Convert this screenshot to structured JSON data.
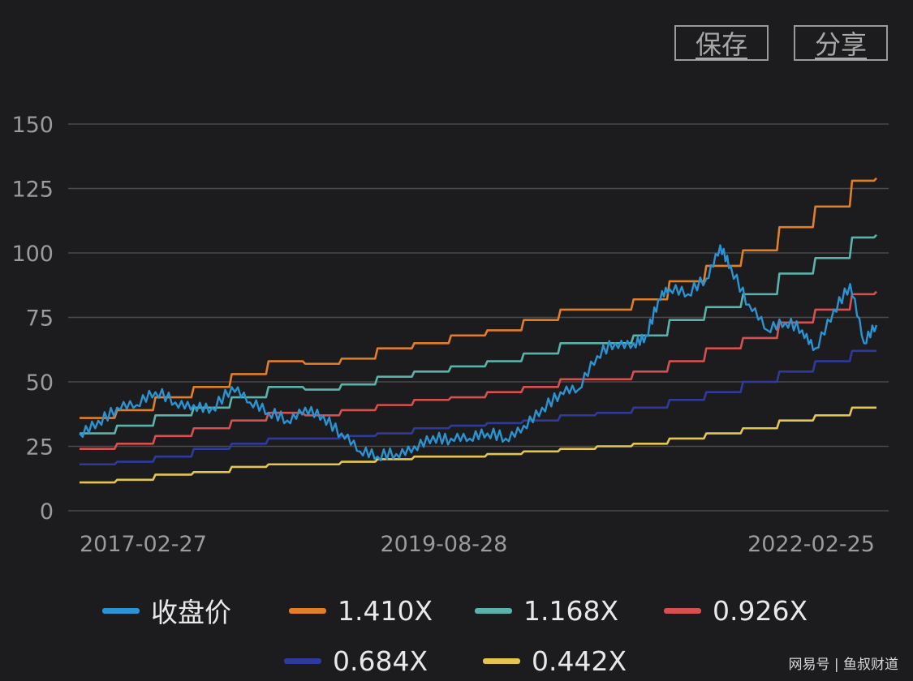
{
  "toolbar": {
    "save_label": "保存",
    "share_label": "分享"
  },
  "watermark": "网易号 | 鱼叔财道",
  "chart_data": {
    "type": "line",
    "title": "",
    "xlabel": "",
    "ylabel": "",
    "ylim": [
      0,
      150
    ],
    "yticks": [
      0,
      25,
      50,
      75,
      100,
      125,
      150
    ],
    "ytick_labels": [
      "0",
      "25",
      "50",
      "75",
      "100",
      "125",
      "150"
    ],
    "xticks": [
      "2017-02-27",
      "2019-08-28",
      "2022-02-25"
    ],
    "xlim": [
      "2017-02-27",
      "2022-08-15"
    ],
    "grid": true,
    "legend_position": "bottom",
    "series": [
      {
        "name": "收盘价",
        "color": "#2b93d1",
        "x": [
          "2017-02-27",
          "2017-04-15",
          "2017-06-01",
          "2017-07-20",
          "2017-09-05",
          "2017-10-25",
          "2017-12-10",
          "2018-01-25",
          "2018-03-15",
          "2018-04-30",
          "2018-06-15",
          "2018-08-01",
          "2018-09-15",
          "2018-10-30",
          "2018-12-15",
          "2019-01-30",
          "2019-03-15",
          "2019-05-01",
          "2019-06-15",
          "2019-08-01",
          "2019-09-15",
          "2019-11-01",
          "2019-12-15",
          "2020-01-30",
          "2020-03-15",
          "2020-04-30",
          "2020-06-15",
          "2020-07-30",
          "2020-09-15",
          "2020-10-30",
          "2020-12-15",
          "2021-01-15",
          "2021-02-15",
          "2021-03-15",
          "2021-04-30",
          "2021-06-15",
          "2021-07-20",
          "2021-08-15",
          "2021-09-30",
          "2021-11-15",
          "2021-12-30",
          "2022-02-10",
          "2022-03-15",
          "2022-04-30",
          "2022-06-10",
          "2022-07-15",
          "2022-08-15"
        ],
        "values": [
          30,
          35,
          40,
          41,
          46,
          42,
          41,
          40,
          48,
          42,
          38,
          35,
          40,
          37,
          30,
          23,
          21,
          22,
          25,
          29,
          28,
          28,
          30,
          28,
          33,
          40,
          46,
          47,
          60,
          65,
          65,
          68,
          82,
          86,
          84,
          90,
          103,
          95,
          80,
          70,
          73,
          70,
          63,
          78,
          88,
          65,
          72
        ]
      },
      {
        "name": "1.410X",
        "color": "#e07f26",
        "x": [
          "2017-02-27",
          "2017-06-01",
          "2017-09-05",
          "2017-12-10",
          "2018-03-15",
          "2018-06-15",
          "2018-09-15",
          "2018-12-15",
          "2019-03-15",
          "2019-06-15",
          "2019-09-15",
          "2019-12-15",
          "2020-03-15",
          "2020-06-15",
          "2020-09-15",
          "2020-12-15",
          "2021-03-15",
          "2021-06-15",
          "2021-09-15",
          "2021-12-15",
          "2022-03-15",
          "2022-06-15",
          "2022-08-15"
        ],
        "values": [
          36,
          39,
          44,
          48,
          53,
          58,
          57,
          59,
          63,
          65,
          68,
          70,
          74,
          78,
          78,
          82,
          89,
          95,
          101,
          110,
          118,
          128,
          129
        ]
      },
      {
        "name": "1.168X",
        "color": "#5ab3aa",
        "x": [
          "2017-02-27",
          "2017-06-01",
          "2017-09-05",
          "2017-12-10",
          "2018-03-15",
          "2018-06-15",
          "2018-09-15",
          "2018-12-15",
          "2019-03-15",
          "2019-06-15",
          "2019-09-15",
          "2019-12-15",
          "2020-03-15",
          "2020-06-15",
          "2020-09-15",
          "2020-12-15",
          "2021-03-15",
          "2021-06-15",
          "2021-09-15",
          "2021-12-15",
          "2022-03-15",
          "2022-06-15",
          "2022-08-15"
        ],
        "values": [
          30,
          33,
          37,
          40,
          44,
          48,
          47,
          49,
          52,
          54,
          56,
          58,
          61,
          65,
          65,
          68,
          74,
          79,
          84,
          92,
          98,
          106,
          107
        ]
      },
      {
        "name": "0.926X",
        "color": "#d5504f",
        "x": [
          "2017-02-27",
          "2017-06-01",
          "2017-09-05",
          "2017-12-10",
          "2018-03-15",
          "2018-06-15",
          "2018-09-15",
          "2018-12-15",
          "2019-03-15",
          "2019-06-15",
          "2019-09-15",
          "2019-12-15",
          "2020-03-15",
          "2020-06-15",
          "2020-09-15",
          "2020-12-15",
          "2021-03-15",
          "2021-06-15",
          "2021-09-15",
          "2021-12-15",
          "2022-03-15",
          "2022-06-15",
          "2022-08-15"
        ],
        "values": [
          24,
          26,
          29,
          32,
          35,
          38,
          37,
          39,
          41,
          43,
          44,
          46,
          48,
          51,
          51,
          54,
          58,
          63,
          67,
          73,
          78,
          84,
          85
        ]
      },
      {
        "name": "0.684X",
        "color": "#2f3a9c",
        "x": [
          "2017-02-27",
          "2017-06-01",
          "2017-09-05",
          "2017-12-10",
          "2018-03-15",
          "2018-06-15",
          "2018-09-15",
          "2018-12-15",
          "2019-03-15",
          "2019-06-15",
          "2019-09-15",
          "2019-12-15",
          "2020-03-15",
          "2020-06-15",
          "2020-09-15",
          "2020-12-15",
          "2021-03-15",
          "2021-06-15",
          "2021-09-15",
          "2021-12-15",
          "2022-03-15",
          "2022-06-15",
          "2022-08-15"
        ],
        "values": [
          18,
          19,
          21,
          24,
          26,
          28,
          28,
          29,
          30,
          32,
          33,
          34,
          35,
          37,
          38,
          40,
          43,
          46,
          50,
          54,
          58,
          62,
          62
        ]
      },
      {
        "name": "0.442X",
        "color": "#e2c64d",
        "x": [
          "2017-02-27",
          "2017-06-01",
          "2017-09-05",
          "2017-12-10",
          "2018-03-15",
          "2018-06-15",
          "2018-09-15",
          "2018-12-15",
          "2019-03-15",
          "2019-06-15",
          "2019-09-15",
          "2019-12-15",
          "2020-03-15",
          "2020-06-15",
          "2020-09-15",
          "2020-12-15",
          "2021-03-15",
          "2021-06-15",
          "2021-09-15",
          "2021-12-15",
          "2022-03-15",
          "2022-06-15",
          "2022-08-15"
        ],
        "values": [
          11,
          12,
          14,
          15,
          17,
          18,
          18,
          19,
          20,
          21,
          21,
          22,
          23,
          24,
          25,
          26,
          28,
          30,
          32,
          35,
          37,
          40,
          40
        ]
      }
    ]
  }
}
